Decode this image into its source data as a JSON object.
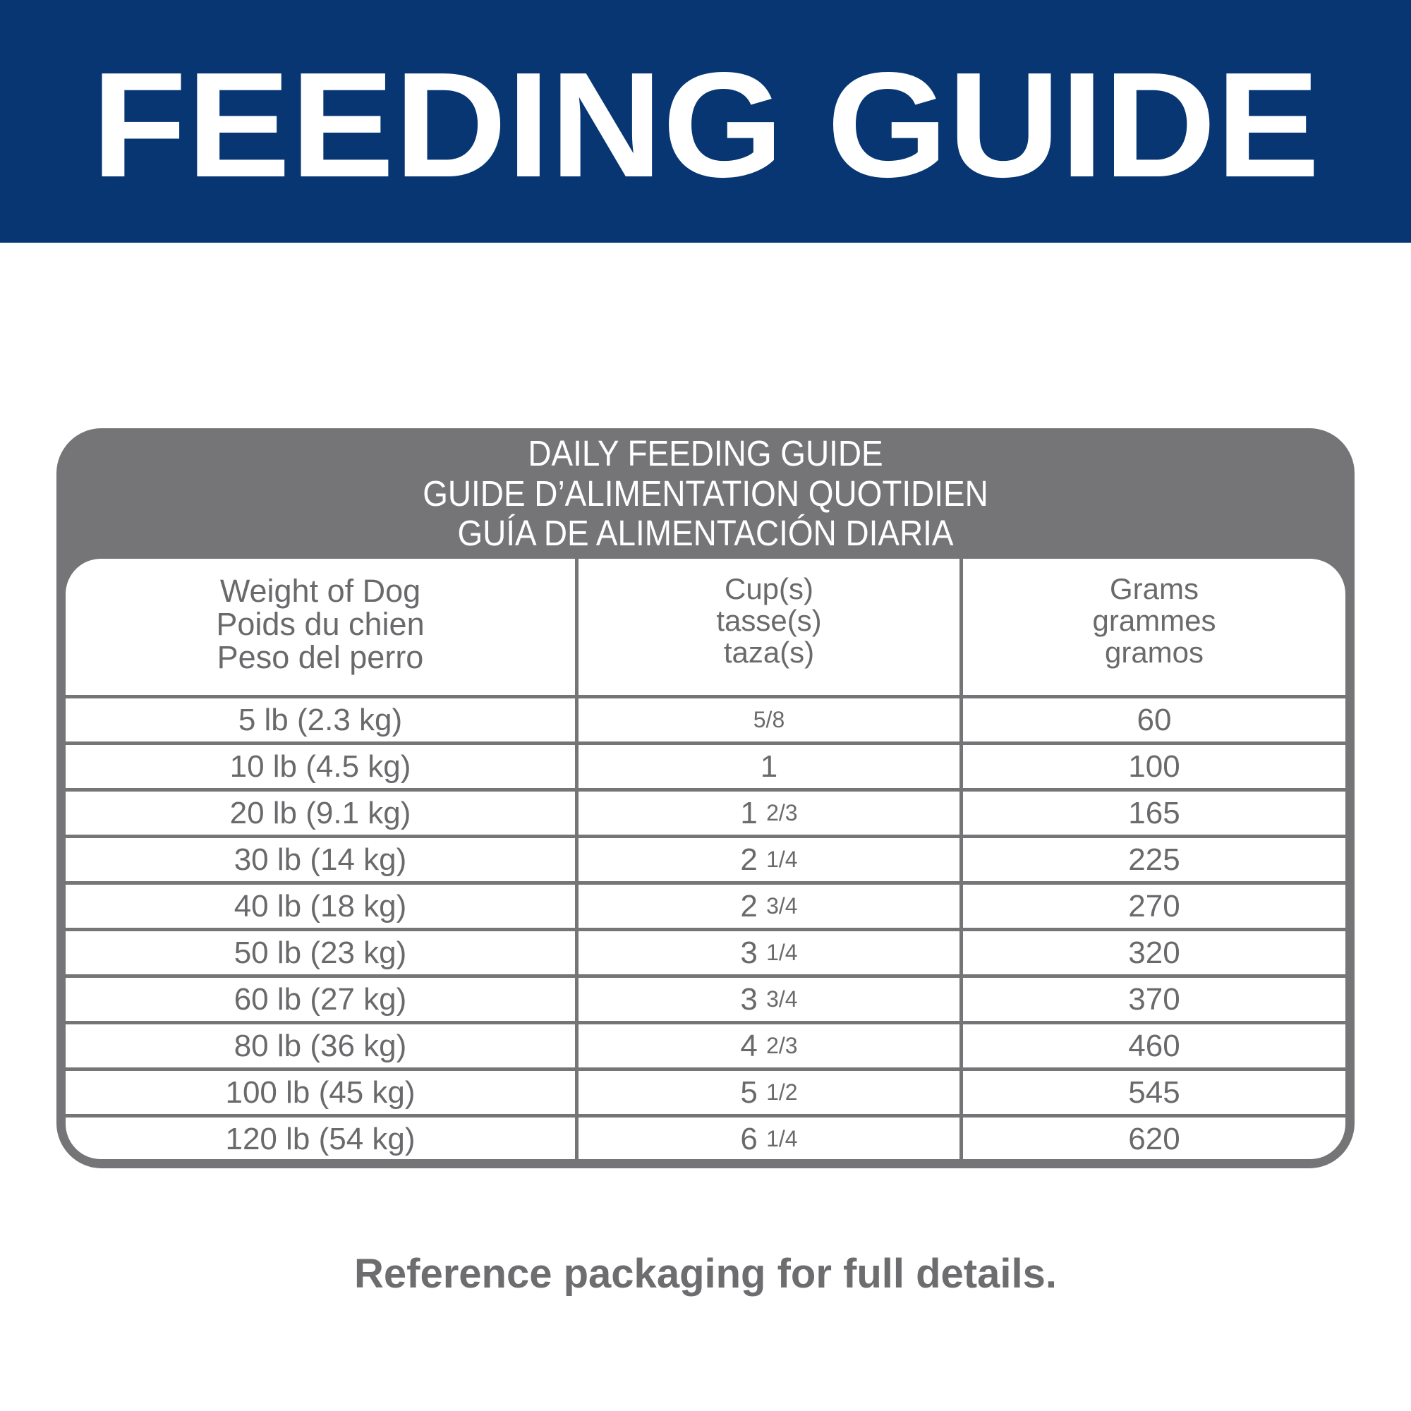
{
  "banner": {
    "title": "FEEDING GUIDE",
    "color": "#073673"
  },
  "card": {
    "color": "#757577",
    "heading": [
      "DAILY FEEDING GUIDE",
      "GUIDE D’ALIMENTATION QUOTIDIEN",
      "GUÍA DE ALIMENTACIÓN DIARIA"
    ]
  },
  "table": {
    "headers": [
      [
        "Weight of Dog",
        "Poids du chien",
        "Peso del perro"
      ],
      [
        "Cup(s)",
        "tasse(s)",
        "taza(s)"
      ],
      [
        "Grams",
        "grammes",
        "gramos"
      ]
    ],
    "rows": [
      {
        "weight": "5 lb (2.3 kg)",
        "cups": "5/8",
        "grams": "60"
      },
      {
        "weight": "10 lb (4.5 kg)",
        "cups": "1",
        "grams": "100"
      },
      {
        "weight": "20 lb (9.1 kg)",
        "cups": "1 2/3",
        "grams": "165"
      },
      {
        "weight": "30 lb (14 kg)",
        "cups": "2 1/4",
        "grams": "225"
      },
      {
        "weight": "40 lb (18 kg)",
        "cups": "2 3/4",
        "grams": "270"
      },
      {
        "weight": "50 lb (23 kg)",
        "cups": "3 1/4",
        "grams": "320"
      },
      {
        "weight": "60 lb (27 kg)",
        "cups": "3 3/4",
        "grams": "370"
      },
      {
        "weight": "80 lb (36 kg)",
        "cups": "4 2/3",
        "grams": "460"
      },
      {
        "weight": "100 lb (45 kg)",
        "cups": "5 1/2",
        "grams": "545"
      },
      {
        "weight": "120 lb (54 kg)",
        "cups": "6 1/4",
        "grams": "620"
      }
    ]
  },
  "footer": {
    "note": "Reference packaging for full details."
  }
}
